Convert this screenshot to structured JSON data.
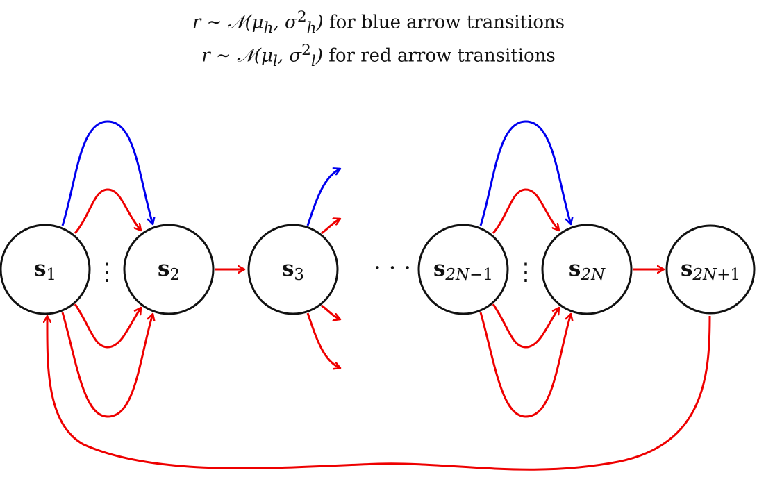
{
  "legend": {
    "high": {
      "math": "r ∼ 𝒩(μ",
      "sub1": "h",
      "mid": ", σ",
      "sup": "2",
      "sub2": "h",
      "close": ")",
      "text": " for blue arrow transitions"
    },
    "low": {
      "math": "r ∼ 𝒩(μ",
      "sub1": "l",
      "mid": ", σ",
      "sup": "2",
      "sub2": "l",
      "close": ")",
      "text": " for red arrow transitions"
    }
  },
  "nodes": [
    {
      "id": "s1",
      "base": "s",
      "sub": "1"
    },
    {
      "id": "s2",
      "base": "s",
      "sub": "2"
    },
    {
      "id": "s3",
      "base": "s",
      "sub": "3"
    },
    {
      "id": "s2n-1",
      "base": "s",
      "sub_italic": "2N",
      "sub_rest": "−1"
    },
    {
      "id": "s2n",
      "base": "s",
      "sub_italic": "2N",
      "sub_rest": ""
    },
    {
      "id": "s2n+1",
      "base": "s",
      "sub_italic": "2N",
      "sub_rest": "+1"
    }
  ],
  "symbols": {
    "vdots": "⋮",
    "hdots": "· · ·"
  },
  "colors": {
    "blue": "#0000ee",
    "red": "#ee0000",
    "outline": "#111111"
  }
}
